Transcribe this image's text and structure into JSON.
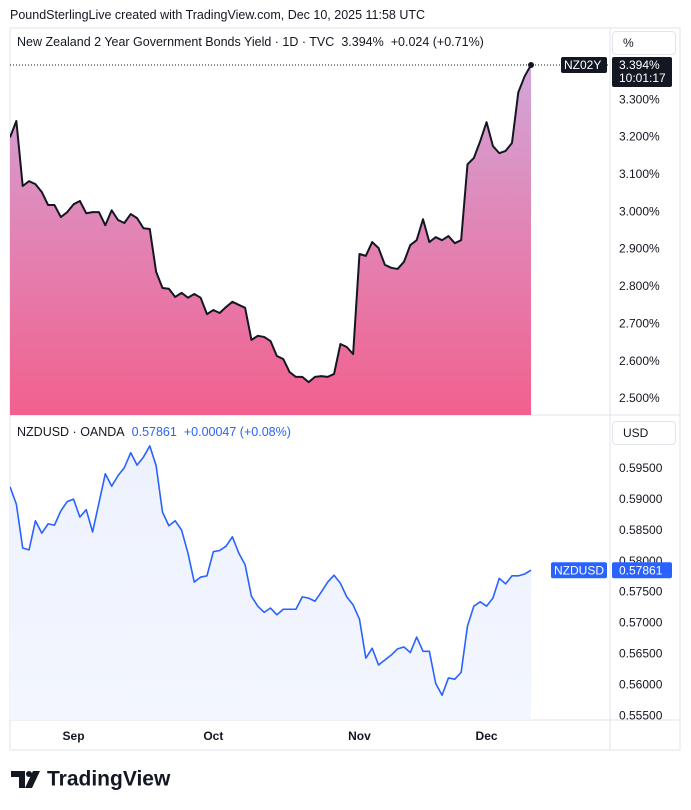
{
  "header": "PoundSterlingLive created with TradingView.com, Dec 10, 2025 11:58 UTC",
  "logo": "TradingView",
  "chart_data": [
    {
      "type": "area",
      "title": "New Zealand 2 Year Government Bonds Yield · 1D · TVC",
      "last_label": "3.394%",
      "change": "+0.024 (+0.71%)",
      "legend_color": "#131722",
      "symbol": "NZ02Y",
      "time_label": "10:01:17",
      "unit": "%",
      "price_line": true,
      "fill_colors": [
        "#d2a6d9",
        "#f2608e"
      ],
      "series": [
        {
          "color": "#131722",
          "values": [
            3.2,
            3.244,
            3.07,
            3.083,
            3.075,
            3.054,
            3.019,
            3.019,
            2.987,
            3.0,
            3.021,
            3.03,
            2.997,
            3.0,
            3.0,
            2.965,
            3.005,
            2.979,
            2.971,
            2.995,
            2.984,
            2.957,
            2.955,
            2.84,
            2.797,
            2.795,
            2.773,
            2.784,
            2.771,
            2.781,
            2.771,
            2.727,
            2.738,
            2.73,
            2.746,
            2.76,
            2.752,
            2.744,
            2.658,
            2.669,
            2.666,
            2.655,
            2.615,
            2.607,
            2.572,
            2.559,
            2.559,
            2.545,
            2.559,
            2.561,
            2.559,
            2.567,
            2.647,
            2.639,
            2.62,
            2.888,
            2.883,
            2.92,
            2.904,
            2.859,
            2.851,
            2.848,
            2.867,
            2.912,
            2.925,
            2.981,
            2.92,
            2.933,
            2.925,
            2.936,
            2.917,
            2.925,
            3.128,
            3.145,
            3.19,
            3.241,
            3.177,
            3.158,
            3.164,
            3.185,
            3.321,
            3.364,
            3.394
          ]
        }
      ],
      "ylim": [
        2.457,
        3.493
      ],
      "yticks": [
        {
          "value": 2.5,
          "label": "2.500%"
        },
        {
          "value": 2.6,
          "label": "2.600%"
        },
        {
          "value": 2.7,
          "label": "2.700%"
        },
        {
          "value": 2.8,
          "label": "2.800%"
        },
        {
          "value": 2.9,
          "label": "2.900%"
        },
        {
          "value": 3.0,
          "label": "3.000%"
        },
        {
          "value": 3.1,
          "label": "3.100%"
        },
        {
          "value": 3.2,
          "label": "3.200%"
        },
        {
          "value": 3.3,
          "label": "3.300%"
        }
      ],
      "grid": false
    },
    {
      "type": "area",
      "title": "NZDUSD · OANDA",
      "last_label": "0.57861",
      "change": "+0.00047 (+0.08%)",
      "legend_color": "#2962ff",
      "symbol": "NZDUSD",
      "unit": "USD",
      "price_line": false,
      "fill_colors": [
        "#eef2fe",
        "#f3f6fe"
      ],
      "categories": [
        null,
        null,
        null,
        null,
        null,
        null,
        null,
        null,
        null,
        null,
        "Sep",
        null,
        null,
        null,
        null,
        null,
        null,
        null,
        null,
        null,
        null,
        null,
        null,
        null,
        null,
        null,
        null,
        null,
        null,
        null,
        null,
        null,
        "Oct",
        null,
        null,
        null,
        null,
        null,
        null,
        null,
        null,
        null,
        null,
        null,
        null,
        null,
        null,
        null,
        null,
        null,
        null,
        null,
        null,
        null,
        null,
        "Nov",
        null,
        null,
        null,
        null,
        null,
        null,
        null,
        null,
        null,
        null,
        null,
        null,
        null,
        null,
        null,
        null,
        null,
        null,
        null,
        "Dec",
        null,
        null,
        null,
        null,
        null,
        null,
        null
      ],
      "series": [
        {
          "color": "#2962ff",
          "values": [
            0.5921,
            0.5893,
            0.5822,
            0.5819,
            0.5866,
            0.5846,
            0.5861,
            0.5859,
            0.5882,
            0.5897,
            0.5901,
            0.5872,
            0.5884,
            0.5848,
            0.5895,
            0.5942,
            0.5922,
            0.5939,
            0.5952,
            0.5976,
            0.5956,
            0.5969,
            0.5987,
            0.5955,
            0.588,
            0.5858,
            0.5866,
            0.5851,
            0.5814,
            0.5767,
            0.5775,
            0.5777,
            0.5816,
            0.5818,
            0.5825,
            0.584,
            0.5814,
            0.5795,
            0.5744,
            0.5728,
            0.5718,
            0.5725,
            0.5714,
            0.5723,
            0.5723,
            0.5723,
            0.5743,
            0.5741,
            0.5736,
            0.5751,
            0.5767,
            0.5778,
            0.5765,
            0.5743,
            0.573,
            0.5707,
            0.5644,
            0.566,
            0.5633,
            0.5641,
            0.5649,
            0.5659,
            0.5662,
            0.5653,
            0.5678,
            0.5655,
            0.5655,
            0.5603,
            0.5584,
            0.5612,
            0.561,
            0.5621,
            0.5696,
            0.5728,
            0.5735,
            0.5728,
            0.5741,
            0.5773,
            0.5764,
            0.5777,
            0.5777,
            0.578,
            0.57861
          ]
        }
      ],
      "ylim": [
        0.5544,
        0.6037
      ],
      "yticks": [
        {
          "value": 0.555,
          "label": "0.55500"
        },
        {
          "value": 0.56,
          "label": "0.56000"
        },
        {
          "value": 0.565,
          "label": "0.56500"
        },
        {
          "value": 0.57,
          "label": "0.57000"
        },
        {
          "value": 0.575,
          "label": "0.57500"
        },
        {
          "value": 0.58,
          "label": "0.58000"
        },
        {
          "value": 0.585,
          "label": "0.58500"
        },
        {
          "value": 0.59,
          "label": "0.59000"
        },
        {
          "value": 0.595,
          "label": "0.59500"
        }
      ],
      "grid": false
    }
  ]
}
